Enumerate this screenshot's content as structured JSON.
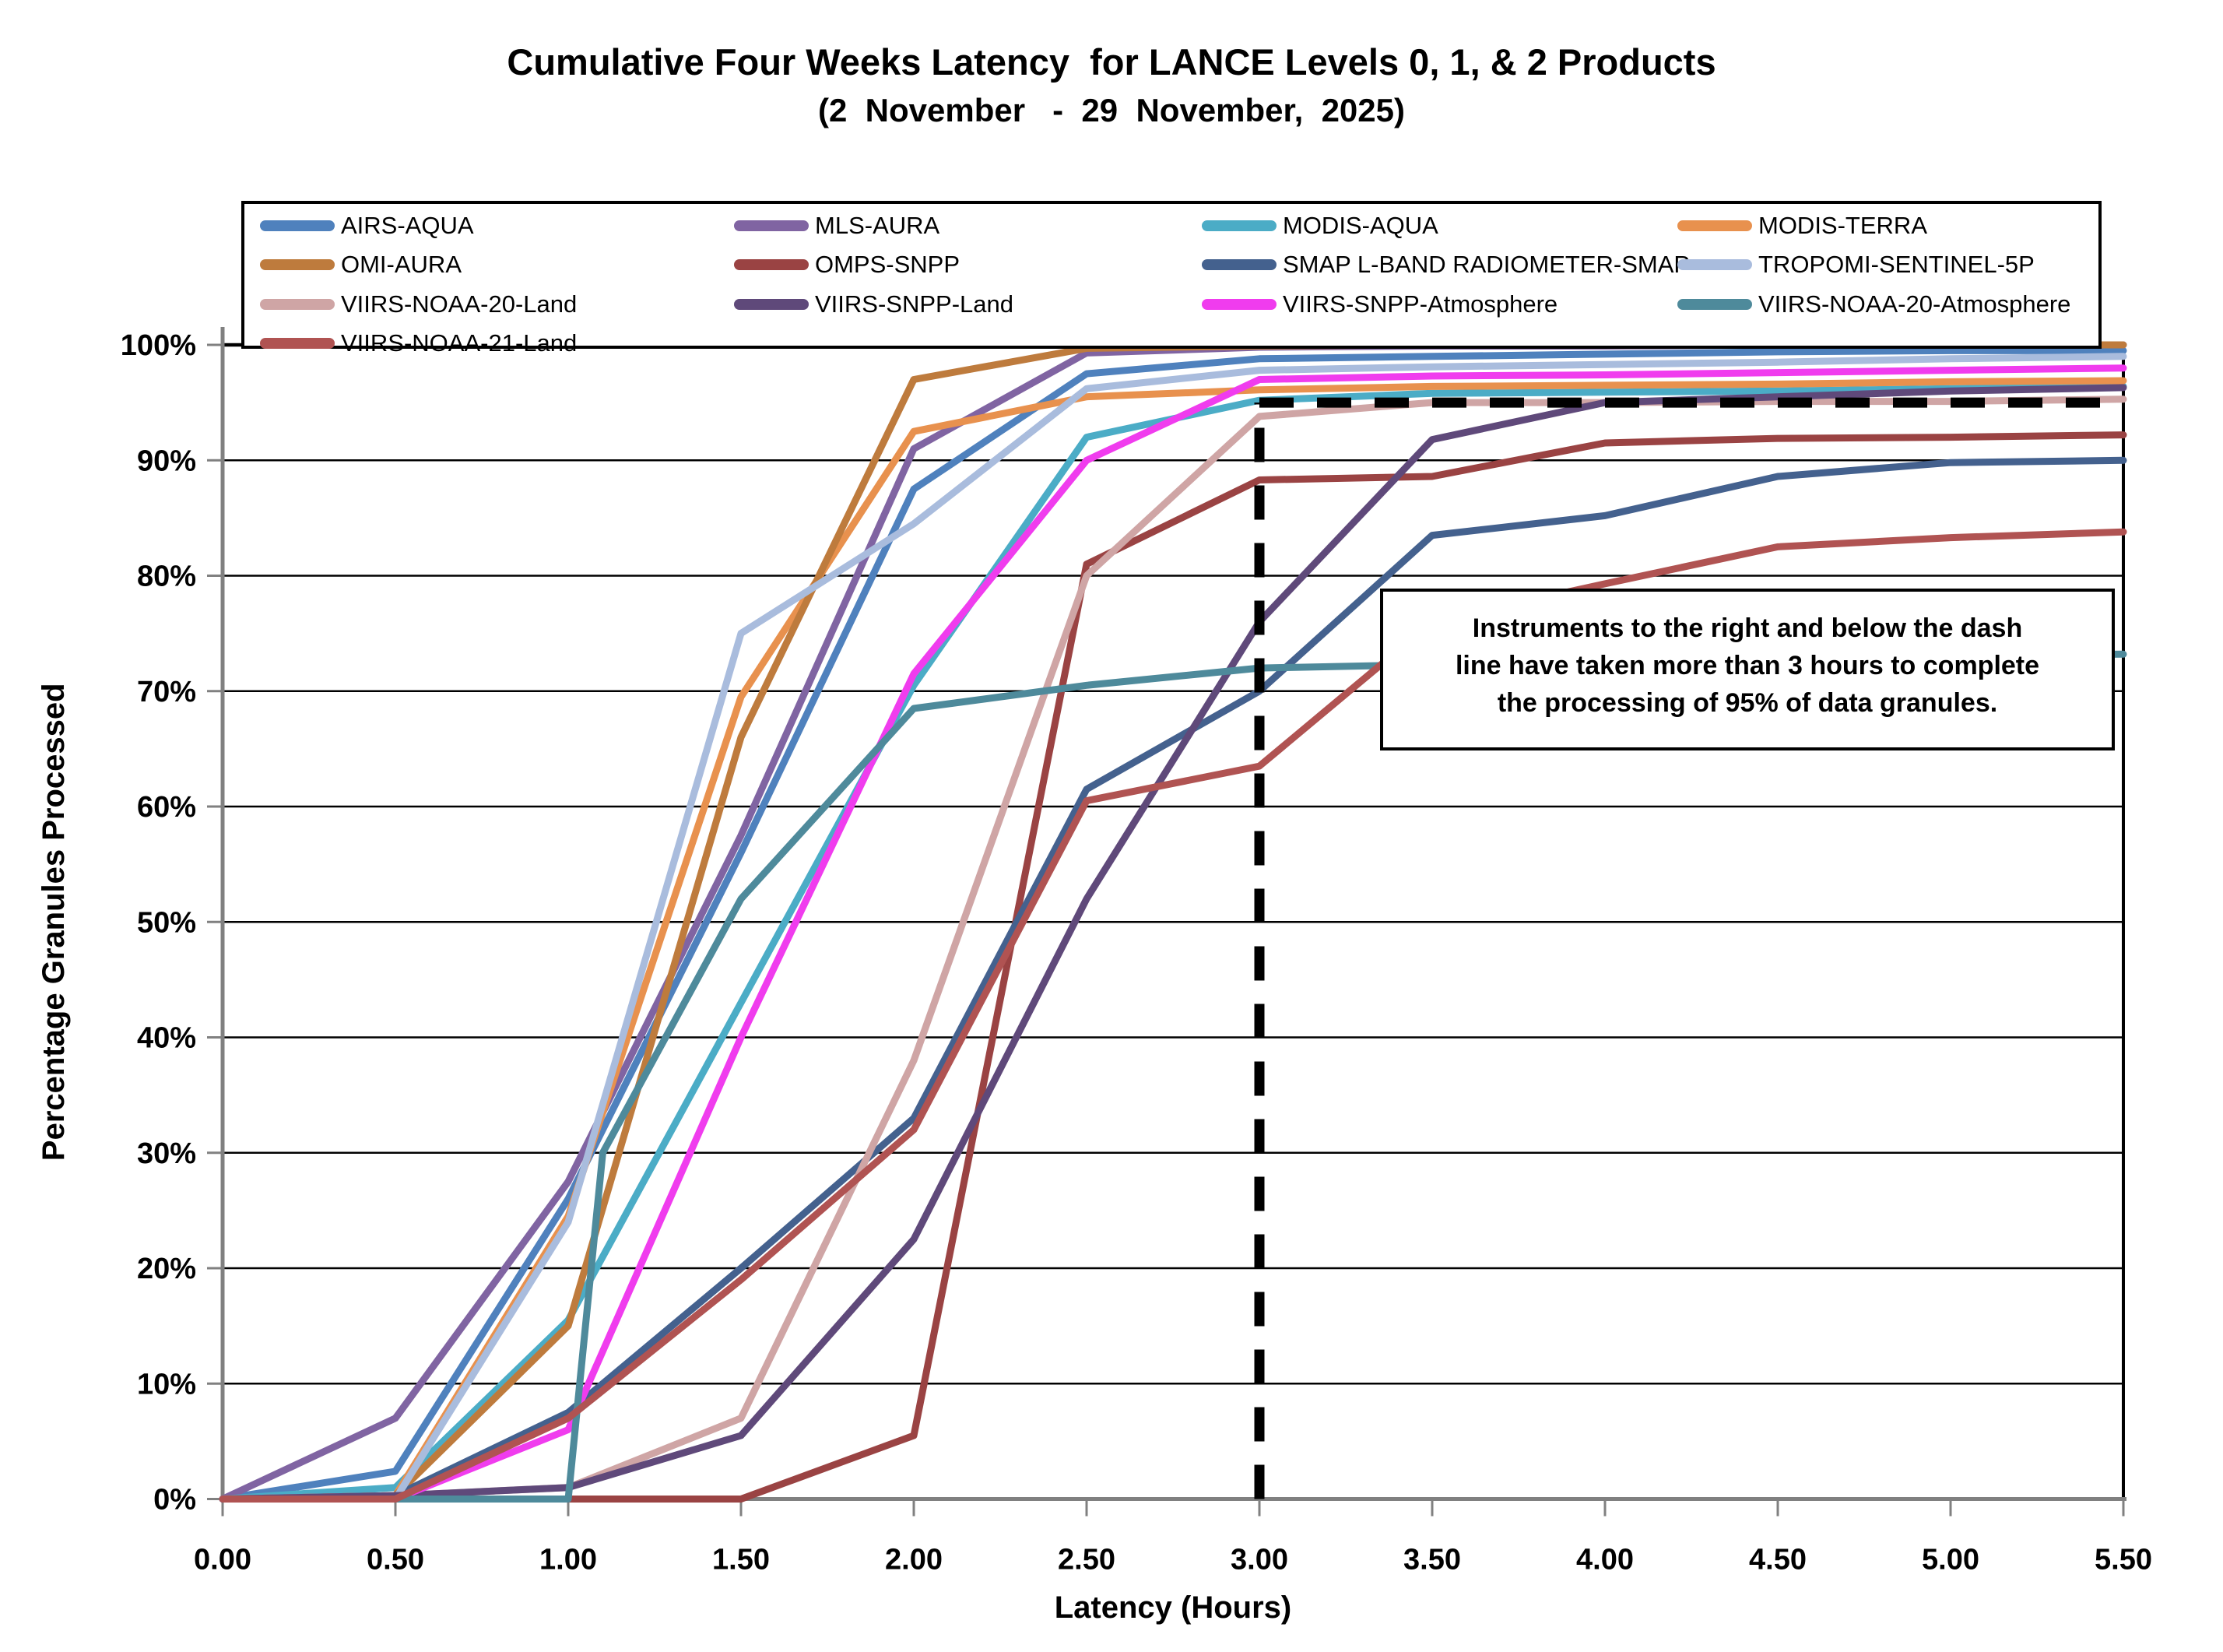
{
  "title": "Cumulative Four Weeks Latency  for LANCE Levels 0, 1, & 2 Products",
  "subtitle": "(2  November   -  29  November,  2025)",
  "chart_data": {
    "type": "line",
    "title": "Cumulative Four Weeks Latency  for LANCE Levels 0, 1, & 2 Products",
    "subtitle": "(2  November   -  29  November,  2025)",
    "xlabel": "Latency (Hours)",
    "ylabel": "Percentage Granules Processed",
    "xlim": [
      0,
      5.5
    ],
    "ylim": [
      0,
      100
    ],
    "grid": "horizontal",
    "legend_position": "top",
    "x_ticks": [
      {
        "v": 0,
        "label": "0.00"
      },
      {
        "v": 0.5,
        "label": "0.50"
      },
      {
        "v": 1,
        "label": "1.00"
      },
      {
        "v": 1.5,
        "label": "1.50"
      },
      {
        "v": 2,
        "label": "2.00"
      },
      {
        "v": 2.5,
        "label": "2.50"
      },
      {
        "v": 3,
        "label": "3.00"
      },
      {
        "v": 3.5,
        "label": "3.50"
      },
      {
        "v": 4,
        "label": "4.00"
      },
      {
        "v": 4.5,
        "label": "4.50"
      },
      {
        "v": 5,
        "label": "5.00"
      },
      {
        "v": 5.5,
        "label": "5.50"
      }
    ],
    "y_ticks": [
      {
        "v": 0,
        "label": "0%"
      },
      {
        "v": 10,
        "label": "10%"
      },
      {
        "v": 20,
        "label": "20%"
      },
      {
        "v": 30,
        "label": "30%"
      },
      {
        "v": 40,
        "label": "40%"
      },
      {
        "v": 50,
        "label": "50%"
      },
      {
        "v": 60,
        "label": "60%"
      },
      {
        "v": 70,
        "label": "70%"
      },
      {
        "v": 80,
        "label": "80%"
      },
      {
        "v": 90,
        "label": "90%"
      },
      {
        "v": 100,
        "label": "100%"
      }
    ],
    "series": [
      {
        "name": "AIRS-AQUA",
        "color": "#4F81BD",
        "points": [
          [
            0,
            0
          ],
          [
            0.5,
            2.4
          ],
          [
            1,
            26
          ],
          [
            1.5,
            56
          ],
          [
            2,
            87.5
          ],
          [
            2.5,
            97.5
          ],
          [
            3,
            98.8
          ],
          [
            3.5,
            99
          ],
          [
            4,
            99.2
          ],
          [
            4.5,
            99.4
          ],
          [
            5,
            99.5
          ],
          [
            5.5,
            99.5
          ]
        ]
      },
      {
        "name": "MLS-AURA",
        "color": "#8064A2",
        "points": [
          [
            0,
            0
          ],
          [
            0.5,
            7
          ],
          [
            1,
            27.5
          ],
          [
            1.5,
            57.5
          ],
          [
            2,
            91
          ],
          [
            2.5,
            99.3
          ],
          [
            3,
            99.8
          ],
          [
            3.5,
            99.9
          ],
          [
            4,
            99.9
          ],
          [
            4.5,
            100
          ],
          [
            5,
            100
          ],
          [
            5.5,
            100
          ]
        ]
      },
      {
        "name": "MODIS-AQUA",
        "color": "#4BACC6",
        "points": [
          [
            0,
            0
          ],
          [
            0.5,
            1
          ],
          [
            1,
            15.5
          ],
          [
            1.5,
            43
          ],
          [
            2,
            70.5
          ],
          [
            2.5,
            92
          ],
          [
            3,
            95.2
          ],
          [
            3.5,
            95.8
          ],
          [
            4,
            95.9
          ],
          [
            4.5,
            96
          ],
          [
            5,
            96.2
          ],
          [
            5.5,
            96.4
          ]
        ]
      },
      {
        "name": "MODIS-TERRA",
        "color": "#E8914E",
        "points": [
          [
            0,
            0
          ],
          [
            0.5,
            0.3
          ],
          [
            1,
            24.5
          ],
          [
            1.5,
            69.5
          ],
          [
            2,
            92.5
          ],
          [
            2.5,
            95.5
          ],
          [
            3,
            96.1
          ],
          [
            3.5,
            96.4
          ],
          [
            4,
            96.5
          ],
          [
            4.5,
            96.6
          ],
          [
            5,
            96.8
          ],
          [
            5.5,
            96.9
          ]
        ]
      },
      {
        "name": "OMI-AURA",
        "color": "#BE7B3D",
        "points": [
          [
            0,
            0
          ],
          [
            0.5,
            0.3
          ],
          [
            1,
            15
          ],
          [
            1.5,
            66
          ],
          [
            2,
            97
          ],
          [
            2.5,
            99.7
          ],
          [
            3,
            99.9
          ],
          [
            3.5,
            100
          ],
          [
            4,
            100
          ],
          [
            4.5,
            100
          ],
          [
            5,
            100
          ],
          [
            5.5,
            100
          ]
        ]
      },
      {
        "name": "OMPS-SNPP",
        "color": "#9A4343",
        "points": [
          [
            0,
            0
          ],
          [
            0.5,
            0
          ],
          [
            1,
            0
          ],
          [
            1.5,
            0
          ],
          [
            2,
            5.5
          ],
          [
            2.5,
            81
          ],
          [
            3,
            88.3
          ],
          [
            3.5,
            88.6
          ],
          [
            4,
            91.5
          ],
          [
            4.5,
            91.9
          ],
          [
            5,
            92
          ],
          [
            5.5,
            92.2
          ]
        ]
      },
      {
        "name": "SMAP L-BAND RADIOMETER-SMAP",
        "color": "#44618E",
        "points": [
          [
            0,
            0
          ],
          [
            0.5,
            0.3
          ],
          [
            1,
            7.5
          ],
          [
            1.5,
            20
          ],
          [
            2,
            33
          ],
          [
            2.5,
            61.5
          ],
          [
            3,
            70
          ],
          [
            3.5,
            83.5
          ],
          [
            4,
            85.2
          ],
          [
            4.5,
            88.6
          ],
          [
            5,
            89.8
          ],
          [
            5.5,
            90
          ]
        ]
      },
      {
        "name": "TROPOMI-SENTINEL-5P",
        "color": "#A9BCDD",
        "points": [
          [
            0,
            0
          ],
          [
            0.5,
            0
          ],
          [
            1,
            24
          ],
          [
            1.5,
            75
          ],
          [
            2,
            84.5
          ],
          [
            2.5,
            96.2
          ],
          [
            3,
            97.8
          ],
          [
            3.5,
            98.1
          ],
          [
            4,
            98.3
          ],
          [
            4.5,
            98.5
          ],
          [
            5,
            98.8
          ],
          [
            5.5,
            99
          ]
        ]
      },
      {
        "name": "VIIRS-NOAA-20-Land",
        "color": "#CFA5A5",
        "points": [
          [
            0,
            0
          ],
          [
            0.5,
            0.3
          ],
          [
            1,
            1
          ],
          [
            1.5,
            7
          ],
          [
            2,
            38
          ],
          [
            2.5,
            80
          ],
          [
            3,
            93.8
          ],
          [
            3.5,
            95
          ],
          [
            4,
            95
          ],
          [
            4.5,
            95.1
          ],
          [
            5,
            95.1
          ],
          [
            5.5,
            95.3
          ]
        ]
      },
      {
        "name": "VIIRS-SNPP-Land",
        "color": "#5F497A",
        "points": [
          [
            0,
            0
          ],
          [
            0.5,
            0.3
          ],
          [
            1,
            1
          ],
          [
            1.5,
            5.5
          ],
          [
            2,
            22.5
          ],
          [
            2.5,
            52
          ],
          [
            3,
            76
          ],
          [
            3.5,
            91.8
          ],
          [
            4,
            95
          ],
          [
            4.5,
            95.5
          ],
          [
            5,
            96
          ],
          [
            5.5,
            96.3
          ]
        ]
      },
      {
        "name": "VIIRS-SNPP-Atmosphere",
        "color": "#F03CEE",
        "points": [
          [
            0,
            0
          ],
          [
            0.5,
            0
          ],
          [
            1,
            6
          ],
          [
            1.5,
            40
          ],
          [
            2,
            71.5
          ],
          [
            2.5,
            90
          ],
          [
            3,
            97
          ],
          [
            3.5,
            97.3
          ],
          [
            4,
            97.4
          ],
          [
            4.5,
            97.6
          ],
          [
            5,
            97.8
          ],
          [
            5.5,
            98
          ]
        ]
      },
      {
        "name": "VIIRS-NOAA-20-Atmosphere",
        "color": "#4E8A9B",
        "points": [
          [
            0,
            0
          ],
          [
            0.5,
            0
          ],
          [
            1,
            0
          ],
          [
            1.1,
            30
          ],
          [
            1.5,
            52
          ],
          [
            2,
            68.5
          ],
          [
            2.5,
            70.5
          ],
          [
            3,
            72
          ],
          [
            3.5,
            72.3
          ],
          [
            4,
            72.6
          ],
          [
            4.5,
            72.9
          ],
          [
            5,
            73.1
          ],
          [
            5.5,
            73.2
          ]
        ]
      },
      {
        "name": "VIIRS-NOAA-21-Land",
        "color": "#B05352",
        "points": [
          [
            0,
            0
          ],
          [
            0.5,
            0
          ],
          [
            1,
            7
          ],
          [
            1.5,
            19
          ],
          [
            2,
            32
          ],
          [
            2.5,
            60.5
          ],
          [
            3,
            63.5
          ],
          [
            3.5,
            76
          ],
          [
            4,
            79.3
          ],
          [
            4.5,
            82.5
          ],
          [
            5,
            83.3
          ],
          [
            5.5,
            83.8
          ]
        ]
      }
    ],
    "reference_lines": {
      "horizontal": {
        "y": 95,
        "x_from": 3,
        "x_to": 5.5
      },
      "vertical": {
        "x": 3,
        "y_from": 0,
        "y_to": 95
      }
    },
    "annotation": {
      "lines": [
        "Instruments to the right and below the dash",
        "line have taken more than 3 hours to complete",
        "the processing of 95% of data granules."
      ]
    }
  },
  "colors": {
    "grid": "#000000",
    "axis": "#808080",
    "frame": "#000000",
    "threshold_dash": "#000000",
    "background": "#ffffff"
  }
}
